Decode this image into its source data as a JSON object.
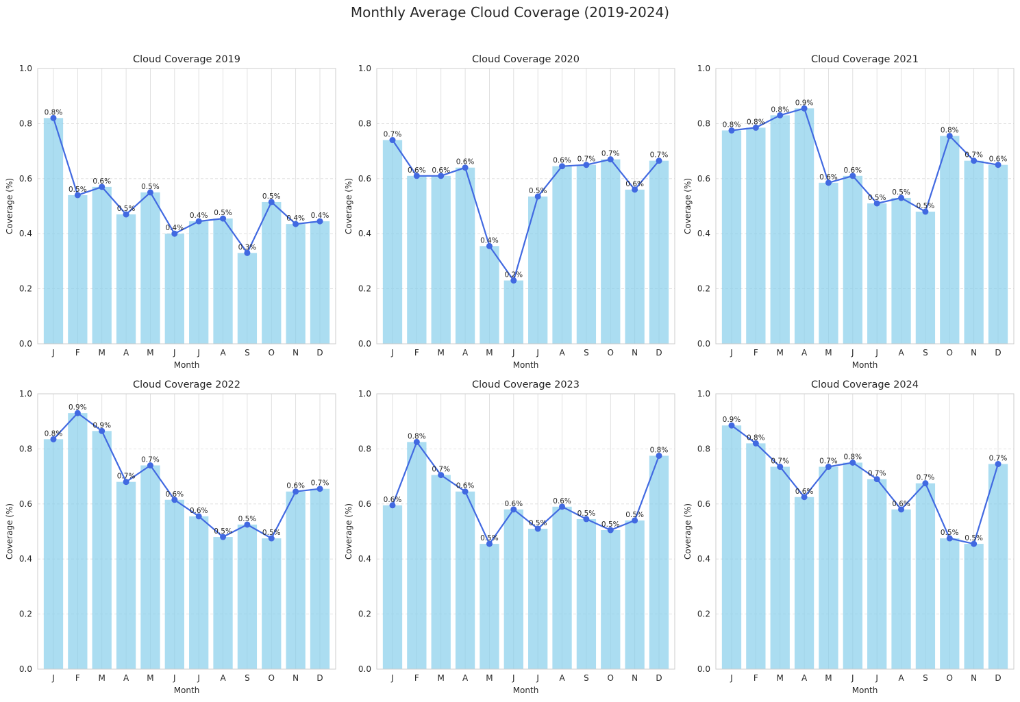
{
  "figure": {
    "title": "Monthly Average Cloud Coverage (2019-2024)"
  },
  "style": {
    "bar_color": "#87CEEB",
    "line_color": "#4169E1",
    "grid_color": "#d9d9d9",
    "spine_color": "#cccccc"
  },
  "chart_data": [
    {
      "type": "bar",
      "title": "Cloud Coverage 2019",
      "xlabel": "Month",
      "ylabel": "Coverage (%)",
      "ylim": [
        0,
        1
      ],
      "yticks": [
        "0.0",
        "0.2",
        "0.4",
        "0.6",
        "0.8",
        "1.0"
      ],
      "categories": [
        "J",
        "F",
        "M",
        "A",
        "M",
        "J",
        "J",
        "A",
        "S",
        "O",
        "N",
        "D"
      ],
      "values": [
        0.82,
        0.54,
        0.57,
        0.47,
        0.55,
        0.4,
        0.445,
        0.455,
        0.33,
        0.515,
        0.435,
        0.445
      ],
      "labels": [
        "0.8%",
        "0.5%",
        "0.6%",
        "0.5%",
        "0.5%",
        "0.4%",
        "0.4%",
        "0.5%",
        "0.3%",
        "0.5%",
        "0.4%",
        "0.4%"
      ],
      "line_overlay": true,
      "grid": true
    },
    {
      "type": "bar",
      "title": "Cloud Coverage 2020",
      "xlabel": "Month",
      "ylabel": "Coverage (%)",
      "ylim": [
        0,
        1
      ],
      "yticks": [
        "0.0",
        "0.2",
        "0.4",
        "0.6",
        "0.8",
        "1.0"
      ],
      "categories": [
        "J",
        "F",
        "M",
        "A",
        "M",
        "J",
        "J",
        "A",
        "S",
        "O",
        "N",
        "D"
      ],
      "values": [
        0.74,
        0.61,
        0.61,
        0.64,
        0.355,
        0.23,
        0.535,
        0.645,
        0.65,
        0.67,
        0.56,
        0.665
      ],
      "labels": [
        "0.7%",
        "0.6%",
        "0.6%",
        "0.6%",
        "0.4%",
        "0.2%",
        "0.5%",
        "0.6%",
        "0.7%",
        "0.7%",
        "0.6%",
        "0.7%"
      ],
      "line_overlay": true,
      "grid": true
    },
    {
      "type": "bar",
      "title": "Cloud Coverage 2021",
      "xlabel": "Month",
      "ylabel": "Coverage (%)",
      "ylim": [
        0,
        1
      ],
      "yticks": [
        "0.0",
        "0.2",
        "0.4",
        "0.6",
        "0.8",
        "1.0"
      ],
      "categories": [
        "J",
        "F",
        "M",
        "A",
        "M",
        "J",
        "J",
        "A",
        "S",
        "O",
        "N",
        "D"
      ],
      "values": [
        0.775,
        0.785,
        0.83,
        0.855,
        0.585,
        0.61,
        0.51,
        0.53,
        0.48,
        0.755,
        0.665,
        0.65
      ],
      "labels": [
        "0.8%",
        "0.8%",
        "0.8%",
        "0.9%",
        "0.6%",
        "0.6%",
        "0.5%",
        "0.5%",
        "0.5%",
        "0.8%",
        "0.7%",
        "0.6%"
      ],
      "line_overlay": true,
      "grid": true
    },
    {
      "type": "bar",
      "title": "Cloud Coverage 2022",
      "xlabel": "Month",
      "ylabel": "Coverage (%)",
      "ylim": [
        0,
        1
      ],
      "yticks": [
        "0.0",
        "0.2",
        "0.4",
        "0.6",
        "0.8",
        "1.0"
      ],
      "categories": [
        "J",
        "F",
        "M",
        "A",
        "M",
        "J",
        "J",
        "A",
        "S",
        "O",
        "N",
        "D"
      ],
      "values": [
        0.835,
        0.93,
        0.865,
        0.68,
        0.74,
        0.615,
        0.555,
        0.48,
        0.525,
        0.475,
        0.645,
        0.655
      ],
      "labels": [
        "0.8%",
        "0.9%",
        "0.9%",
        "0.7%",
        "0.7%",
        "0.6%",
        "0.6%",
        "0.5%",
        "0.5%",
        "0.5%",
        "0.6%",
        "0.7%"
      ],
      "line_overlay": true,
      "grid": true
    },
    {
      "type": "bar",
      "title": "Cloud Coverage 2023",
      "xlabel": "Month",
      "ylabel": "Coverage (%)",
      "ylim": [
        0,
        1
      ],
      "yticks": [
        "0.0",
        "0.2",
        "0.4",
        "0.6",
        "0.8",
        "1.0"
      ],
      "categories": [
        "J",
        "F",
        "M",
        "A",
        "M",
        "J",
        "J",
        "A",
        "S",
        "O",
        "N",
        "D"
      ],
      "values": [
        0.595,
        0.825,
        0.705,
        0.645,
        0.455,
        0.58,
        0.51,
        0.59,
        0.545,
        0.505,
        0.54,
        0.775
      ],
      "labels": [
        "0.6%",
        "0.8%",
        "0.7%",
        "0.6%",
        "0.5%",
        "0.6%",
        "0.5%",
        "0.6%",
        "0.5%",
        "0.5%",
        "0.5%",
        "0.8%"
      ],
      "line_overlay": true,
      "grid": true
    },
    {
      "type": "bar",
      "title": "Cloud Coverage 2024",
      "xlabel": "Month",
      "ylabel": "Coverage (%)",
      "ylim": [
        0,
        1
      ],
      "yticks": [
        "0.0",
        "0.2",
        "0.4",
        "0.6",
        "0.8",
        "1.0"
      ],
      "categories": [
        "J",
        "F",
        "M",
        "A",
        "M",
        "J",
        "J",
        "A",
        "S",
        "O",
        "N",
        "D"
      ],
      "values": [
        0.885,
        0.82,
        0.735,
        0.625,
        0.735,
        0.75,
        0.69,
        0.58,
        0.675,
        0.475,
        0.455,
        0.745
      ],
      "labels": [
        "0.9%",
        "0.8%",
        "0.7%",
        "0.6%",
        "0.7%",
        "0.8%",
        "0.7%",
        "0.6%",
        "0.7%",
        "0.5%",
        "0.5%",
        "0.7%"
      ],
      "line_overlay": true,
      "grid": true
    }
  ]
}
